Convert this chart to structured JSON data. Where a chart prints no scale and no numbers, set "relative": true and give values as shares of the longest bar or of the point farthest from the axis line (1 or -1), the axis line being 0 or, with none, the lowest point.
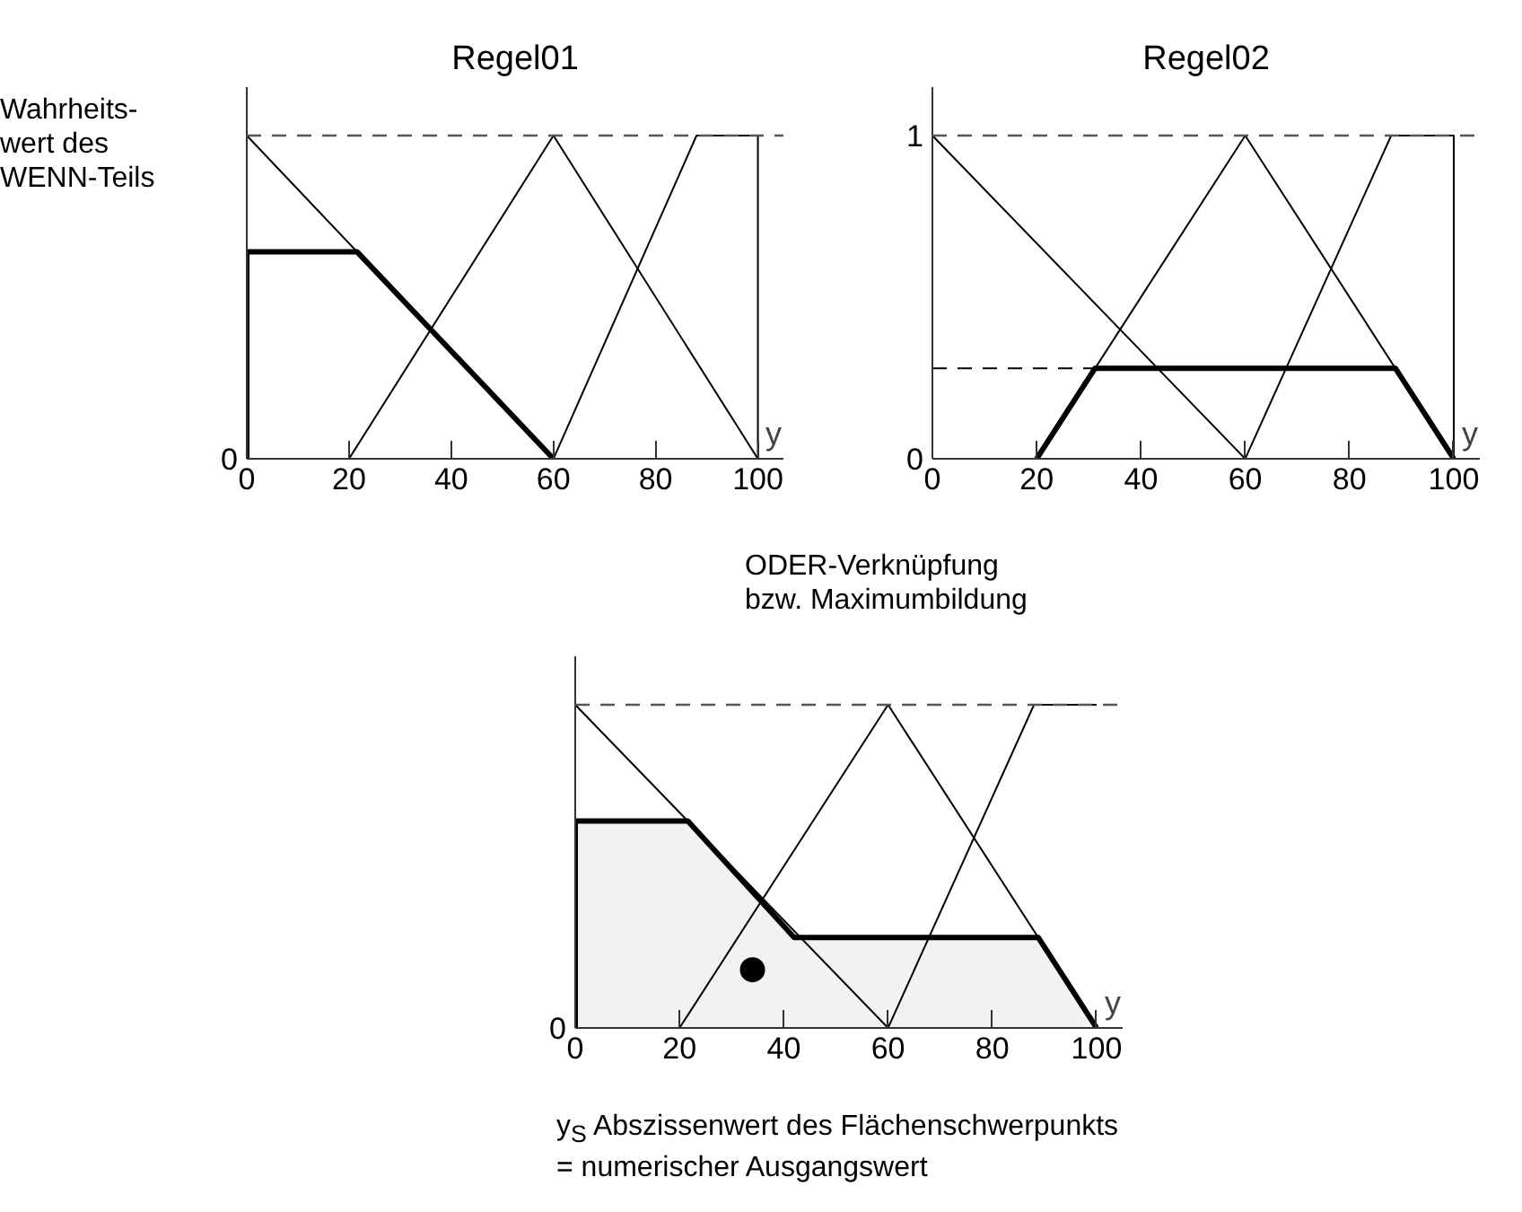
{
  "chart_data": [
    {
      "type": "line",
      "title": "Regel01",
      "xlabel": "y",
      "relative": true,
      "xlim": [
        0,
        105
      ],
      "xticks": [
        0,
        20,
        40,
        60,
        80,
        100
      ],
      "grid": false,
      "annotations": [
        "0",
        "Wahrheits-\nwert des\nWENN-Teils"
      ],
      "ref_lines": [
        {
          "axis": "y",
          "value": 1,
          "line_style": "dashed",
          "color": "#555555"
        }
      ],
      "series": [
        {
          "color": "#000000",
          "x": [
            0,
            60
          ],
          "values": [
            1,
            0
          ]
        },
        {
          "color": "#000000",
          "x": [
            20,
            60,
            100
          ],
          "values": [
            0,
            1,
            0
          ]
        },
        {
          "color": "#000000",
          "x": [
            60,
            88,
            100,
            100
          ],
          "values": [
            0,
            1,
            1,
            0
          ]
        },
        {
          "color": "#000000",
          "x": [
            0,
            0,
            21.6,
            60
          ],
          "values": [
            0,
            0.64,
            0.64,
            0
          ]
        }
      ]
    },
    {
      "type": "line",
      "title": "Regel02",
      "xlabel": "y",
      "xlim": [
        0,
        105
      ],
      "ylim": [
        0,
        1.15
      ],
      "xticks": [
        0,
        20,
        40,
        60,
        80,
        100
      ],
      "yticks": [
        0,
        1
      ],
      "grid": false,
      "ref_lines": [
        {
          "axis": "y",
          "value": 1,
          "line_style": "dashed",
          "color": "#555555"
        }
      ],
      "series": [
        {
          "color": "#000000",
          "x": [
            0,
            60
          ],
          "values": [
            1,
            0
          ]
        },
        {
          "color": "#000000",
          "x": [
            20,
            60,
            100
          ],
          "values": [
            0,
            1,
            0
          ]
        },
        {
          "color": "#000000",
          "x": [
            60,
            88,
            100,
            100
          ],
          "values": [
            0,
            1,
            1,
            0
          ]
        },
        {
          "color": "#000000",
          "x": [
            0,
            31.2
          ],
          "values": [
            0.28,
            0.28
          ],
          "line_style": "dashed"
        },
        {
          "color": "#000000",
          "x": [
            20,
            31.2,
            88.8,
            100
          ],
          "values": [
            0,
            0.28,
            0.28,
            0
          ]
        }
      ]
    },
    {
      "type": "line",
      "xlabel": "y",
      "relative": true,
      "xlim": [
        0,
        105
      ],
      "xticks": [
        0,
        20,
        40,
        60,
        80,
        100
      ],
      "grid": false,
      "annotations": [
        "0",
        "ODER-Verknüpfung\nbzw. Maximumbildung",
        "y$_{S}$ Abszissenwert des Flächenschwerpunkts\n= numerischer Ausgangswert"
      ],
      "ref_lines": [
        {
          "axis": "y",
          "value": 1,
          "line_style": "dashed",
          "color": "#555555"
        }
      ],
      "series": [
        {
          "type": "area",
          "color": "#f2f2f2",
          "x": [
            0,
            0,
            21.6,
            42,
            88.8,
            100
          ],
          "values": [
            0,
            0.64,
            0.64,
            0.28,
            0.28,
            0
          ]
        },
        {
          "color": "#000000",
          "x": [
            0,
            60
          ],
          "values": [
            1,
            0
          ]
        },
        {
          "color": "#000000",
          "x": [
            20,
            60,
            100
          ],
          "values": [
            0,
            1,
            0
          ]
        },
        {
          "color": "#000000",
          "x": [
            60,
            88,
            100
          ],
          "values": [
            0,
            1,
            1
          ]
        },
        {
          "type": "scatter",
          "marker": "circle",
          "color": "#000000",
          "x": [
            34
          ],
          "values": [
            0.18
          ]
        }
      ]
    }
  ]
}
